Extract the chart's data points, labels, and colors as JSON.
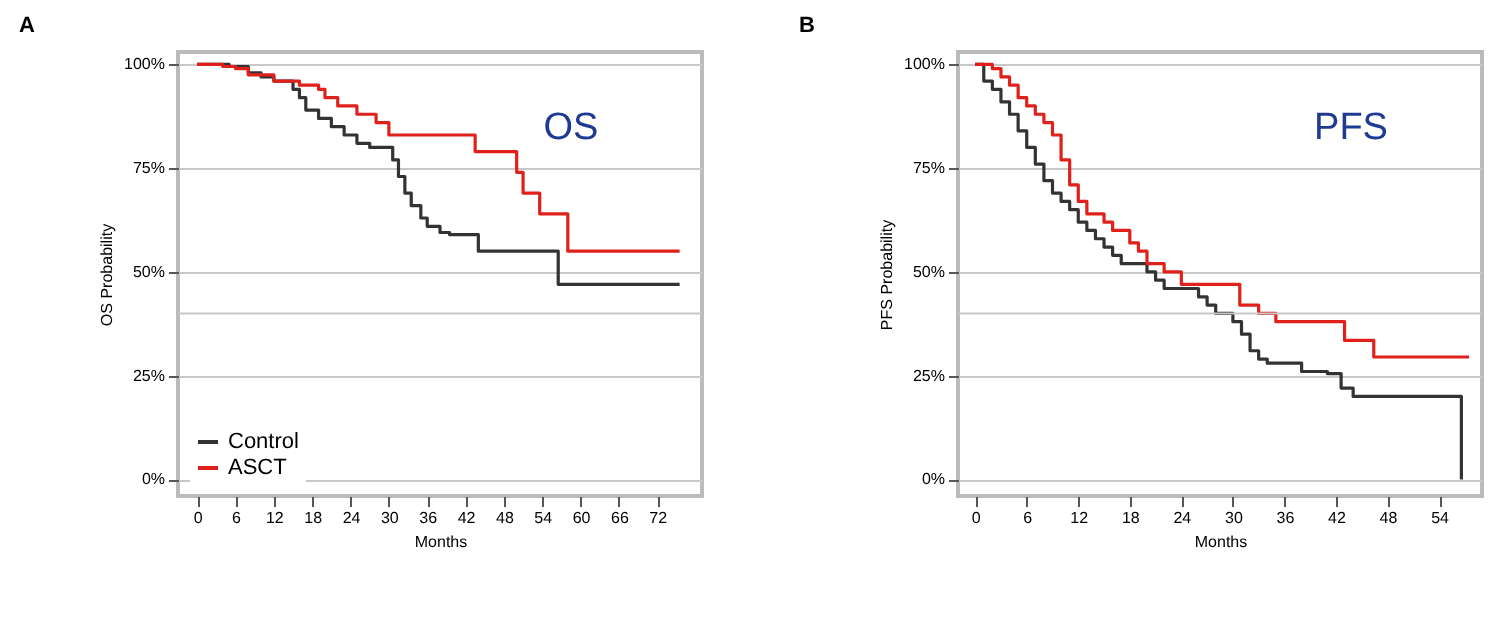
{
  "chart_data": [
    {
      "type": "step",
      "title": "A",
      "xlabel": "Months",
      "ylabel": "OS Probability",
      "annotations": [
        "OS"
      ],
      "xlim": [
        -3,
        79
      ],
      "xticks": [
        0,
        6,
        12,
        18,
        24,
        30,
        36,
        42,
        48,
        54,
        60,
        66,
        72
      ],
      "ylim": [
        -4,
        103
      ],
      "yticks": [
        {
          "value": 0,
          "label": "0%"
        },
        {
          "value": 25,
          "label": "25%"
        },
        {
          "value": 50,
          "label": "50%"
        },
        {
          "value": 75,
          "label": "75%"
        },
        {
          "value": 100,
          "label": "100%"
        }
      ],
      "grid": "y",
      "legend": "bottom left",
      "ref_lines": [
        {
          "axis": "y",
          "value": 40,
          "label": null
        }
      ],
      "series": [
        {
          "name": "Control",
          "color": "#333333",
          "x": [
            0,
            5,
            8,
            10,
            12,
            15,
            16,
            17,
            19,
            21,
            23,
            25,
            27,
            30.6,
            31.5,
            32.5,
            33.5,
            35,
            36,
            38,
            39.5,
            44,
            56.5,
            75.5
          ],
          "values": [
            100,
            99.5,
            98,
            97,
            96,
            94,
            92,
            89,
            87,
            85,
            83,
            81,
            80,
            77,
            73,
            69,
            66,
            63,
            61,
            59.5,
            59,
            55,
            47,
            47
          ]
        },
        {
          "name": "ASCT",
          "color": "#e0201b",
          "x": [
            0,
            4,
            6,
            8,
            12,
            16,
            19,
            20,
            22,
            25,
            28,
            30,
            43.5,
            50,
            51,
            53.6,
            58,
            75.5
          ],
          "values": [
            100,
            99.5,
            99,
            97.5,
            96,
            95,
            94,
            92,
            90,
            88,
            86,
            83,
            79,
            74,
            69,
            64,
            55,
            55
          ]
        }
      ]
    },
    {
      "type": "step",
      "title": "B",
      "xlabel": "Months",
      "ylabel": "PFS Probability",
      "annotations": [
        "PFS"
      ],
      "xlim": [
        -2,
        59
      ],
      "xticks": [
        0,
        6,
        12,
        18,
        24,
        30,
        36,
        42,
        48,
        54
      ],
      "ylim": [
        -4,
        103
      ],
      "yticks": [
        {
          "value": 0,
          "label": "0%"
        },
        {
          "value": 25,
          "label": "25%"
        },
        {
          "value": 50,
          "label": "50%"
        },
        {
          "value": 75,
          "label": "75%"
        },
        {
          "value": 100,
          "label": "100%"
        }
      ],
      "grid": "y",
      "legend": "bottom left",
      "ref_lines": [
        {
          "axis": "y",
          "value": 40,
          "label": null
        }
      ],
      "series": [
        {
          "name": "Control",
          "color": "#333333",
          "x": [
            0,
            1,
            2,
            3,
            4,
            5,
            6,
            7,
            8,
            9,
            10,
            11,
            12,
            13,
            14,
            15,
            16,
            17,
            19,
            20,
            21,
            22,
            25,
            26,
            27,
            28,
            30,
            31,
            32,
            33,
            34,
            37,
            38,
            41,
            42.6,
            44,
            56.5,
            56.6
          ],
          "values": [
            100,
            96,
            94,
            91,
            88,
            84,
            80,
            76,
            72,
            69,
            67,
            65,
            62,
            60,
            58,
            56,
            54,
            52,
            52,
            50,
            48,
            46,
            46,
            44,
            42,
            40,
            38,
            35,
            31,
            29,
            28,
            28,
            26,
            25.5,
            22,
            20,
            20,
            0
          ]
        },
        {
          "name": "ASCT",
          "color": "#e0201b",
          "x": [
            0,
            2,
            3,
            4,
            5,
            6,
            7,
            8,
            9,
            10,
            11,
            12,
            13,
            15,
            16,
            18,
            19,
            20,
            22,
            24,
            30.8,
            33,
            35,
            43,
            46.4,
            57.5
          ],
          "values": [
            100,
            99,
            97,
            95,
            92,
            90,
            88,
            86,
            83,
            77,
            71,
            67,
            64,
            62,
            60,
            57,
            55,
            52,
            50,
            47,
            42,
            40,
            38,
            33.5,
            29.5,
            29.5
          ]
        }
      ]
    }
  ]
}
